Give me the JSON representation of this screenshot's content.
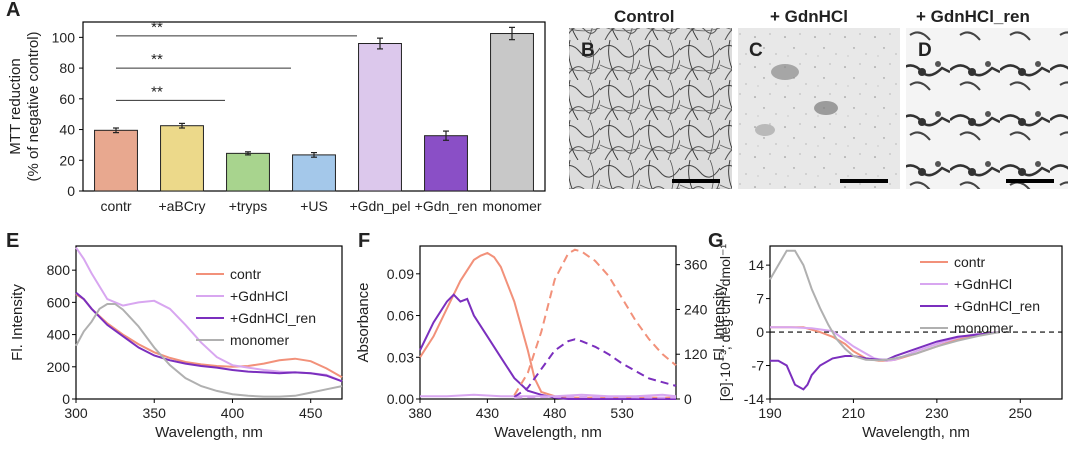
{
  "panels": {
    "A": "A",
    "B": "B",
    "C": "C",
    "D": "D",
    "E": "E",
    "F": "F",
    "G": "G"
  },
  "em_images": {
    "B_title": "Control",
    "C_title": "+ GdnHCl",
    "D_title": "+ GdnHCl_ren"
  },
  "colors": {
    "contr": "#f2917a",
    "gdnhcl": "#d8a6f0",
    "gdnhcl_ren": "#7b2fbe",
    "monomer": "#b0b0b0"
  },
  "chart_data": [
    {
      "id": "A",
      "type": "bar",
      "title": "",
      "xlabel": "",
      "ylabel": "MTT reduction",
      "ylabel2": "(% of negative control)",
      "ylim": [
        0,
        110
      ],
      "yticks": [
        "0",
        "20",
        "40",
        "60",
        "80",
        "100"
      ],
      "categories": [
        "contr",
        "+aBCry",
        "+tryps",
        "+US",
        "+Gdn_pel",
        "+Gdn_ren",
        "monomer"
      ],
      "values": [
        39.5,
        42.5,
        24.5,
        23.5,
        96,
        36,
        102.5
      ],
      "errors": [
        1.5,
        1.5,
        1,
        1.5,
        3.5,
        3,
        4
      ],
      "bar_colors": [
        "#e8a88f",
        "#ecd98a",
        "#a8d48e",
        "#a4c8ea",
        "#dcc8ec",
        "#8a4fc6",
        "#c8c8c8"
      ],
      "significance": [
        {
          "from": 0,
          "to": 3,
          "y": 101,
          "label": "**"
        },
        {
          "from": 0,
          "to": 2,
          "y": 80,
          "label": "**"
        },
        {
          "from": 0,
          "to": 1,
          "y": 59,
          "label": "**"
        }
      ]
    },
    {
      "id": "E",
      "type": "line",
      "xlabel": "Wavelength, nm",
      "ylabel": "Fl. Intensity",
      "xlim": [
        300,
        470
      ],
      "ylim": [
        0,
        950
      ],
      "xticks": [
        "300",
        "350",
        "400",
        "450"
      ],
      "yticks": [
        "0",
        "200",
        "400",
        "600",
        "800"
      ],
      "series": [
        {
          "name": "contr",
          "x": [
            300,
            305,
            310,
            320,
            330,
            340,
            350,
            360,
            370,
            380,
            390,
            400,
            410,
            420,
            430,
            440,
            450,
            460,
            470
          ],
          "y": [
            650,
            620,
            560,
            470,
            400,
            340,
            290,
            255,
            230,
            215,
            205,
            200,
            205,
            220,
            240,
            250,
            235,
            190,
            135
          ]
        },
        {
          "name": "+GdnHCl",
          "x": [
            300,
            305,
            310,
            320,
            330,
            340,
            350,
            360,
            370,
            380,
            390,
            400,
            410,
            420,
            430,
            440,
            450,
            460,
            470
          ],
          "y": [
            940,
            870,
            780,
            620,
            580,
            600,
            610,
            560,
            460,
            350,
            260,
            210,
            195,
            180,
            170,
            165,
            160,
            150,
            110
          ]
        },
        {
          "name": "+GdnHCl_ren",
          "x": [
            300,
            305,
            310,
            320,
            330,
            340,
            350,
            360,
            370,
            380,
            390,
            400,
            410,
            420,
            430,
            440,
            450,
            460,
            470
          ],
          "y": [
            660,
            620,
            560,
            460,
            390,
            320,
            270,
            240,
            220,
            205,
            195,
            180,
            170,
            165,
            160,
            165,
            160,
            145,
            110
          ]
        },
        {
          "name": "monomer",
          "x": [
            300,
            305,
            310,
            315,
            320,
            325,
            330,
            340,
            350,
            360,
            370,
            380,
            390,
            400,
            410,
            420,
            430,
            440,
            450,
            460,
            470
          ],
          "y": [
            330,
            420,
            480,
            560,
            590,
            590,
            555,
            450,
            320,
            210,
            130,
            80,
            50,
            30,
            20,
            15,
            15,
            20,
            40,
            60,
            80
          ]
        }
      ]
    },
    {
      "id": "F",
      "type": "line",
      "xlabel": "Wavelength, nm",
      "ylabel": "Absorbance",
      "ylabel_right": "Fl. Intensity",
      "xlim": [
        380,
        570
      ],
      "ylim": [
        0,
        0.11
      ],
      "ylim_right": [
        0,
        410
      ],
      "xticks": [
        "380",
        "430",
        "480",
        "530"
      ],
      "yticks": [
        "0.00",
        "0.03",
        "0.06",
        "0.09"
      ],
      "yticks_right": [
        "0",
        "120",
        "240",
        "360"
      ],
      "series": [
        {
          "name": "contr absorbance",
          "axis": "left",
          "dash": false,
          "x": [
            380,
            390,
            400,
            410,
            420,
            425,
            430,
            435,
            440,
            450,
            460,
            465,
            470,
            480,
            490,
            570
          ],
          "y": [
            0.03,
            0.045,
            0.065,
            0.085,
            0.1,
            0.103,
            0.105,
            0.102,
            0.095,
            0.07,
            0.035,
            0.015,
            0.005,
            0.002,
            0.001,
            0.001
          ]
        },
        {
          "name": "+GdnHCl_ren absorbance",
          "axis": "left",
          "dash": false,
          "x": [
            380,
            390,
            400,
            405,
            410,
            415,
            420,
            430,
            440,
            450,
            460,
            470,
            480,
            490,
            570
          ],
          "y": [
            0.035,
            0.055,
            0.07,
            0.075,
            0.07,
            0.072,
            0.06,
            0.045,
            0.03,
            0.015,
            0.006,
            0.003,
            0.001,
            0.0,
            0.0
          ]
        },
        {
          "name": "+GdnHCl absorbance",
          "axis": "left",
          "dash": false,
          "x": [
            380,
            400,
            420,
            440,
            460,
            480,
            500,
            520,
            540,
            560,
            570
          ],
          "y": [
            0.002,
            0.002,
            0.003,
            0.002,
            0.002,
            0.002,
            0.003,
            0.002,
            0.002,
            0.003,
            0.002
          ]
        },
        {
          "name": "contr fluorescence",
          "axis": "right",
          "dash": true,
          "x": [
            450,
            460,
            470,
            480,
            490,
            495,
            500,
            510,
            520,
            530,
            540,
            550,
            560,
            570
          ],
          "y": [
            10,
            70,
            180,
            320,
            390,
            400,
            395,
            370,
            330,
            270,
            210,
            160,
            120,
            90
          ]
        },
        {
          "name": "+GdnHCl_ren fluorescence",
          "axis": "right",
          "dash": true,
          "x": [
            450,
            460,
            470,
            480,
            490,
            495,
            500,
            510,
            520,
            530,
            540,
            550,
            560,
            570
          ],
          "y": [
            5,
            30,
            80,
            130,
            155,
            160,
            155,
            140,
            120,
            95,
            75,
            55,
            45,
            35
          ]
        },
        {
          "name": "+GdnHCl fluorescence",
          "axis": "right",
          "dash": true,
          "x": [
            450,
            470,
            490,
            510,
            530,
            550,
            570
          ],
          "y": [
            3,
            5,
            6,
            5,
            5,
            4,
            4
          ]
        }
      ]
    },
    {
      "id": "G",
      "type": "line",
      "xlabel": "Wavelength, nm",
      "ylabel": "[Θ]·10⁻³, deg·cm²·dmol⁻¹",
      "xlim": [
        190,
        260
      ],
      "ylim": [
        -14,
        18
      ],
      "xticks": [
        "190",
        "210",
        "230",
        "250"
      ],
      "yticks": [
        "-14",
        "-7",
        "0",
        "7",
        "14"
      ],
      "series": [
        {
          "name": "contr",
          "x": [
            190,
            195,
            198,
            200,
            202,
            205,
            208,
            210,
            213,
            216,
            218,
            220,
            225,
            230,
            235,
            240,
            245
          ],
          "y": [
            1,
            1,
            1,
            0.5,
            0,
            -1,
            -2.5,
            -4,
            -5.5,
            -6,
            -6,
            -5.8,
            -4.5,
            -3,
            -1.5,
            -0.5,
            0
          ]
        },
        {
          "name": "+GdnHCl",
          "x": [
            190,
            195,
            200,
            205,
            210,
            215,
            218,
            220,
            225,
            230,
            235,
            240
          ],
          "y": [
            1,
            1,
            0.8,
            0.2,
            -3,
            -5.5,
            -6,
            -5.8,
            -4,
            -2.5,
            -1.2,
            -0.3
          ]
        },
        {
          "name": "+GdnHCl_ren",
          "x": [
            190,
            192,
            194,
            196,
            198,
            199,
            200,
            202,
            205,
            208,
            210,
            213,
            216,
            218,
            220,
            225,
            230,
            235,
            240,
            245
          ],
          "y": [
            -6,
            -6,
            -7,
            -11,
            -12,
            -11,
            -9,
            -7,
            -5.5,
            -5,
            -5,
            -5.5,
            -5.8,
            -5.8,
            -5,
            -3.5,
            -2,
            -1,
            -0.5,
            0
          ]
        },
        {
          "name": "monomer",
          "x": [
            190,
            192,
            194,
            196,
            198,
            200,
            202,
            204,
            206,
            208,
            210,
            213,
            216,
            218,
            220,
            225,
            230,
            235,
            240,
            245
          ],
          "y": [
            11,
            14,
            17,
            17,
            14,
            9,
            5,
            1.5,
            -1.5,
            -3.5,
            -5,
            -5.8,
            -5.9,
            -5.8,
            -5.5,
            -4.5,
            -3,
            -1.8,
            -0.8,
            0
          ]
        }
      ]
    }
  ]
}
